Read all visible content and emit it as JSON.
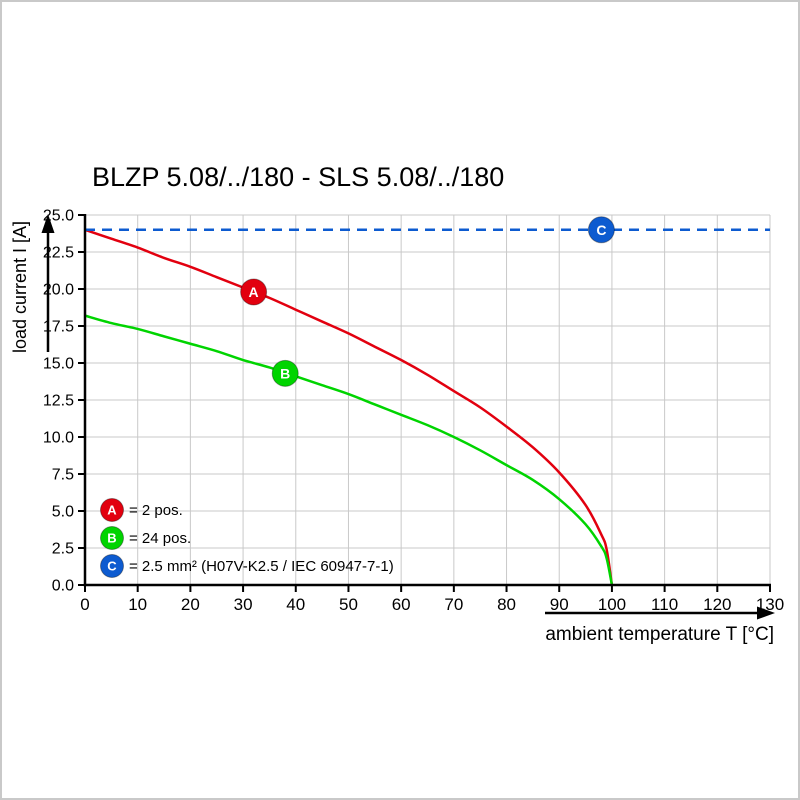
{
  "chart_data": {
    "type": "line",
    "title": "BLZP 5.08/../180 - SLS 5.08/../180",
    "xlabel": "ambient temperature T [°C]",
    "ylabel": "load current I [A]",
    "xlim": [
      0,
      130
    ],
    "ylim": [
      0,
      25
    ],
    "x_ticks": [
      0,
      10,
      20,
      30,
      40,
      50,
      60,
      70,
      80,
      90,
      100,
      110,
      120,
      130
    ],
    "y_ticks": [
      0,
      2.5,
      5,
      7.5,
      10,
      12.5,
      15,
      17.5,
      20,
      22.5,
      25
    ],
    "grid": true,
    "grid_color": "#c9c9c9",
    "axis_color": "#000000",
    "legend_position": "bottom-left",
    "series": [
      {
        "name": "A",
        "legend_label": "= 2 pos.",
        "color": "#e2000f",
        "style": "solid",
        "x": [
          0,
          5,
          10,
          15,
          20,
          25,
          30,
          35,
          40,
          45,
          50,
          55,
          60,
          65,
          70,
          75,
          80,
          85,
          90,
          95,
          98,
          99,
          100
        ],
        "y": [
          24.0,
          23.4,
          22.8,
          22.1,
          21.5,
          20.8,
          20.1,
          19.4,
          18.6,
          17.8,
          17.0,
          16.1,
          15.2,
          14.2,
          13.1,
          12.0,
          10.7,
          9.3,
          7.6,
          5.4,
          3.4,
          2.4,
          0
        ],
        "marker": {
          "x": 32,
          "y": 19.8
        }
      },
      {
        "name": "B",
        "legend_label": "= 24 pos.",
        "color": "#00d400",
        "style": "solid",
        "x": [
          0,
          5,
          10,
          15,
          20,
          25,
          30,
          35,
          40,
          45,
          50,
          55,
          60,
          65,
          70,
          75,
          80,
          85,
          90,
          95,
          98,
          99,
          100
        ],
        "y": [
          18.2,
          17.7,
          17.3,
          16.8,
          16.3,
          15.8,
          15.2,
          14.7,
          14.1,
          13.5,
          12.9,
          12.2,
          11.5,
          10.8,
          10.0,
          9.1,
          8.1,
          7.1,
          5.8,
          4.1,
          2.6,
          1.8,
          0
        ],
        "marker": {
          "x": 38,
          "y": 14.3
        }
      },
      {
        "name": "C",
        "legend_label": "= 2.5 mm² (H07V-K2.5 / IEC 60947-7-1)",
        "color": "#0d5bd0",
        "style": "dashed",
        "x": [
          0,
          130
        ],
        "y": [
          24,
          24
        ],
        "marker": {
          "x": 98,
          "y": 24
        }
      }
    ]
  }
}
